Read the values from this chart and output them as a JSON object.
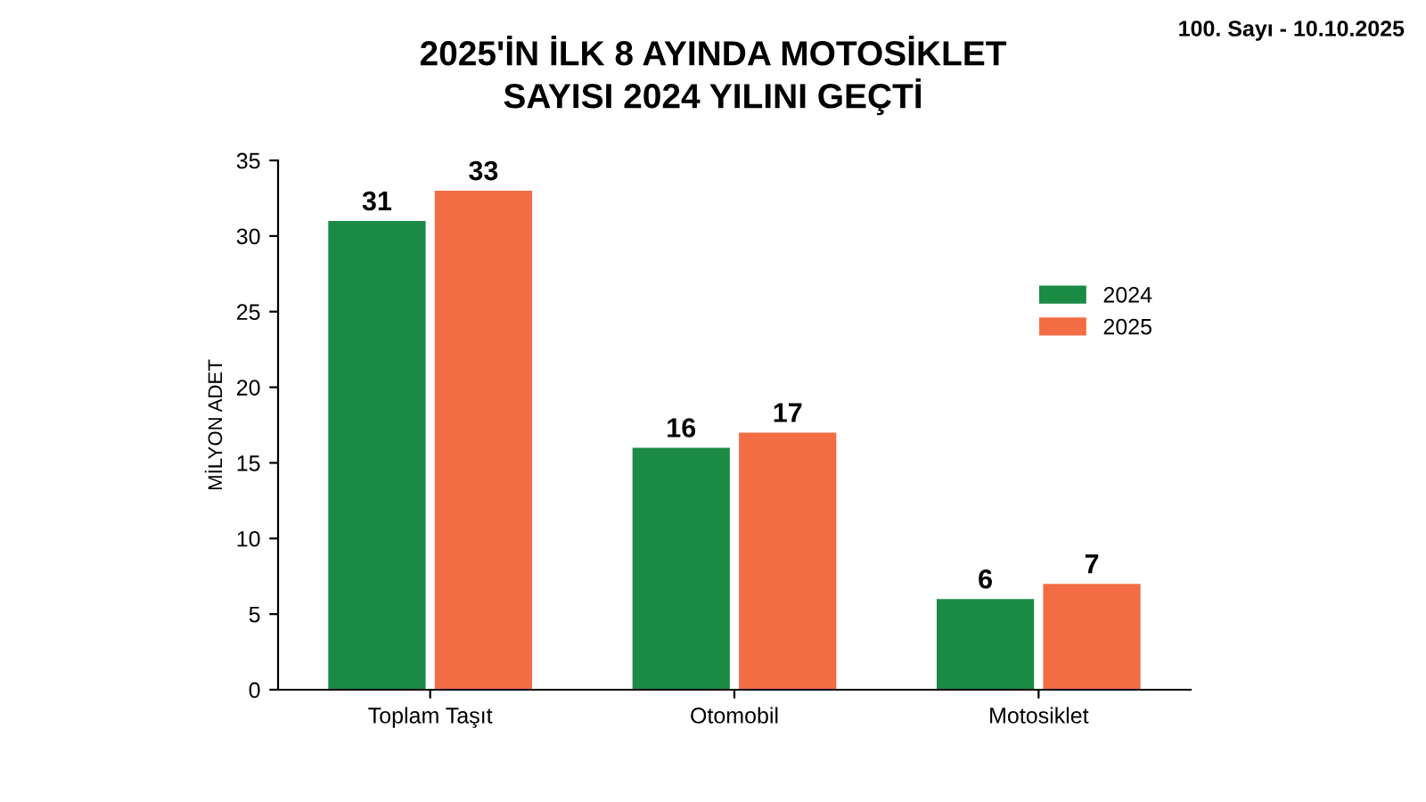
{
  "chart_data": {
    "type": "bar",
    "title": "2025'İN İLK 8 AYINDA MOTOSİKLET\nSAYISI 2024 YILINI GEÇTİ",
    "ylabel": "MİLYON ADET",
    "categories": [
      "Toplam Taşıt",
      "Otomobil",
      "Motosiklet"
    ],
    "series": [
      {
        "name": "2024",
        "color": "#1a8a45",
        "values": [
          31,
          16,
          6
        ]
      },
      {
        "name": "2025",
        "color": "#f26d43",
        "values": [
          33,
          17,
          7
        ]
      }
    ],
    "ylim": [
      0,
      35
    ],
    "yticks": [
      0,
      5,
      10,
      15,
      20,
      25,
      30,
      35
    ],
    "data_labels": true,
    "legend": "top right",
    "grid": false,
    "annotations": [
      "100. Sayı - 10.10.2025"
    ]
  }
}
